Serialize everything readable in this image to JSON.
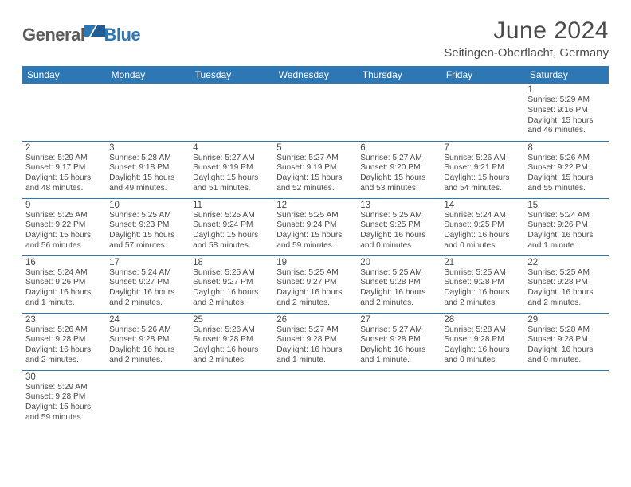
{
  "logo": {
    "text1": "General",
    "text2": "Blue"
  },
  "header": {
    "title": "June 2024",
    "location": "Seitingen-Oberflacht, Germany"
  },
  "colors": {
    "header_bg": "#2e77b5",
    "header_text": "#ffffff",
    "body_text": "#4a4a4a",
    "border": "#2e77b5",
    "logo_gray": "#5a5a5a",
    "logo_blue": "#2e77b5"
  },
  "calendar": {
    "day_headers": [
      "Sunday",
      "Monday",
      "Tuesday",
      "Wednesday",
      "Thursday",
      "Friday",
      "Saturday"
    ],
    "weeks": [
      [
        null,
        null,
        null,
        null,
        null,
        null,
        {
          "n": "1",
          "sr": "Sunrise: 5:29 AM",
          "ss": "Sunset: 9:16 PM",
          "dl": "Daylight: 15 hours and 46 minutes."
        }
      ],
      [
        {
          "n": "2",
          "sr": "Sunrise: 5:29 AM",
          "ss": "Sunset: 9:17 PM",
          "dl": "Daylight: 15 hours and 48 minutes."
        },
        {
          "n": "3",
          "sr": "Sunrise: 5:28 AM",
          "ss": "Sunset: 9:18 PM",
          "dl": "Daylight: 15 hours and 49 minutes."
        },
        {
          "n": "4",
          "sr": "Sunrise: 5:27 AM",
          "ss": "Sunset: 9:19 PM",
          "dl": "Daylight: 15 hours and 51 minutes."
        },
        {
          "n": "5",
          "sr": "Sunrise: 5:27 AM",
          "ss": "Sunset: 9:19 PM",
          "dl": "Daylight: 15 hours and 52 minutes."
        },
        {
          "n": "6",
          "sr": "Sunrise: 5:27 AM",
          "ss": "Sunset: 9:20 PM",
          "dl": "Daylight: 15 hours and 53 minutes."
        },
        {
          "n": "7",
          "sr": "Sunrise: 5:26 AM",
          "ss": "Sunset: 9:21 PM",
          "dl": "Daylight: 15 hours and 54 minutes."
        },
        {
          "n": "8",
          "sr": "Sunrise: 5:26 AM",
          "ss": "Sunset: 9:22 PM",
          "dl": "Daylight: 15 hours and 55 minutes."
        }
      ],
      [
        {
          "n": "9",
          "sr": "Sunrise: 5:25 AM",
          "ss": "Sunset: 9:22 PM",
          "dl": "Daylight: 15 hours and 56 minutes."
        },
        {
          "n": "10",
          "sr": "Sunrise: 5:25 AM",
          "ss": "Sunset: 9:23 PM",
          "dl": "Daylight: 15 hours and 57 minutes."
        },
        {
          "n": "11",
          "sr": "Sunrise: 5:25 AM",
          "ss": "Sunset: 9:24 PM",
          "dl": "Daylight: 15 hours and 58 minutes."
        },
        {
          "n": "12",
          "sr": "Sunrise: 5:25 AM",
          "ss": "Sunset: 9:24 PM",
          "dl": "Daylight: 15 hours and 59 minutes."
        },
        {
          "n": "13",
          "sr": "Sunrise: 5:25 AM",
          "ss": "Sunset: 9:25 PM",
          "dl": "Daylight: 16 hours and 0 minutes."
        },
        {
          "n": "14",
          "sr": "Sunrise: 5:24 AM",
          "ss": "Sunset: 9:25 PM",
          "dl": "Daylight: 16 hours and 0 minutes."
        },
        {
          "n": "15",
          "sr": "Sunrise: 5:24 AM",
          "ss": "Sunset: 9:26 PM",
          "dl": "Daylight: 16 hours and 1 minute."
        }
      ],
      [
        {
          "n": "16",
          "sr": "Sunrise: 5:24 AM",
          "ss": "Sunset: 9:26 PM",
          "dl": "Daylight: 16 hours and 1 minute."
        },
        {
          "n": "17",
          "sr": "Sunrise: 5:24 AM",
          "ss": "Sunset: 9:27 PM",
          "dl": "Daylight: 16 hours and 2 minutes."
        },
        {
          "n": "18",
          "sr": "Sunrise: 5:25 AM",
          "ss": "Sunset: 9:27 PM",
          "dl": "Daylight: 16 hours and 2 minutes."
        },
        {
          "n": "19",
          "sr": "Sunrise: 5:25 AM",
          "ss": "Sunset: 9:27 PM",
          "dl": "Daylight: 16 hours and 2 minutes."
        },
        {
          "n": "20",
          "sr": "Sunrise: 5:25 AM",
          "ss": "Sunset: 9:28 PM",
          "dl": "Daylight: 16 hours and 2 minutes."
        },
        {
          "n": "21",
          "sr": "Sunrise: 5:25 AM",
          "ss": "Sunset: 9:28 PM",
          "dl": "Daylight: 16 hours and 2 minutes."
        },
        {
          "n": "22",
          "sr": "Sunrise: 5:25 AM",
          "ss": "Sunset: 9:28 PM",
          "dl": "Daylight: 16 hours and 2 minutes."
        }
      ],
      [
        {
          "n": "23",
          "sr": "Sunrise: 5:26 AM",
          "ss": "Sunset: 9:28 PM",
          "dl": "Daylight: 16 hours and 2 minutes."
        },
        {
          "n": "24",
          "sr": "Sunrise: 5:26 AM",
          "ss": "Sunset: 9:28 PM",
          "dl": "Daylight: 16 hours and 2 minutes."
        },
        {
          "n": "25",
          "sr": "Sunrise: 5:26 AM",
          "ss": "Sunset: 9:28 PM",
          "dl": "Daylight: 16 hours and 2 minutes."
        },
        {
          "n": "26",
          "sr": "Sunrise: 5:27 AM",
          "ss": "Sunset: 9:28 PM",
          "dl": "Daylight: 16 hours and 1 minute."
        },
        {
          "n": "27",
          "sr": "Sunrise: 5:27 AM",
          "ss": "Sunset: 9:28 PM",
          "dl": "Daylight: 16 hours and 1 minute."
        },
        {
          "n": "28",
          "sr": "Sunrise: 5:28 AM",
          "ss": "Sunset: 9:28 PM",
          "dl": "Daylight: 16 hours and 0 minutes."
        },
        {
          "n": "29",
          "sr": "Sunrise: 5:28 AM",
          "ss": "Sunset: 9:28 PM",
          "dl": "Daylight: 16 hours and 0 minutes."
        }
      ],
      [
        {
          "n": "30",
          "sr": "Sunrise: 5:29 AM",
          "ss": "Sunset: 9:28 PM",
          "dl": "Daylight: 15 hours and 59 minutes."
        },
        null,
        null,
        null,
        null,
        null,
        null
      ]
    ]
  }
}
